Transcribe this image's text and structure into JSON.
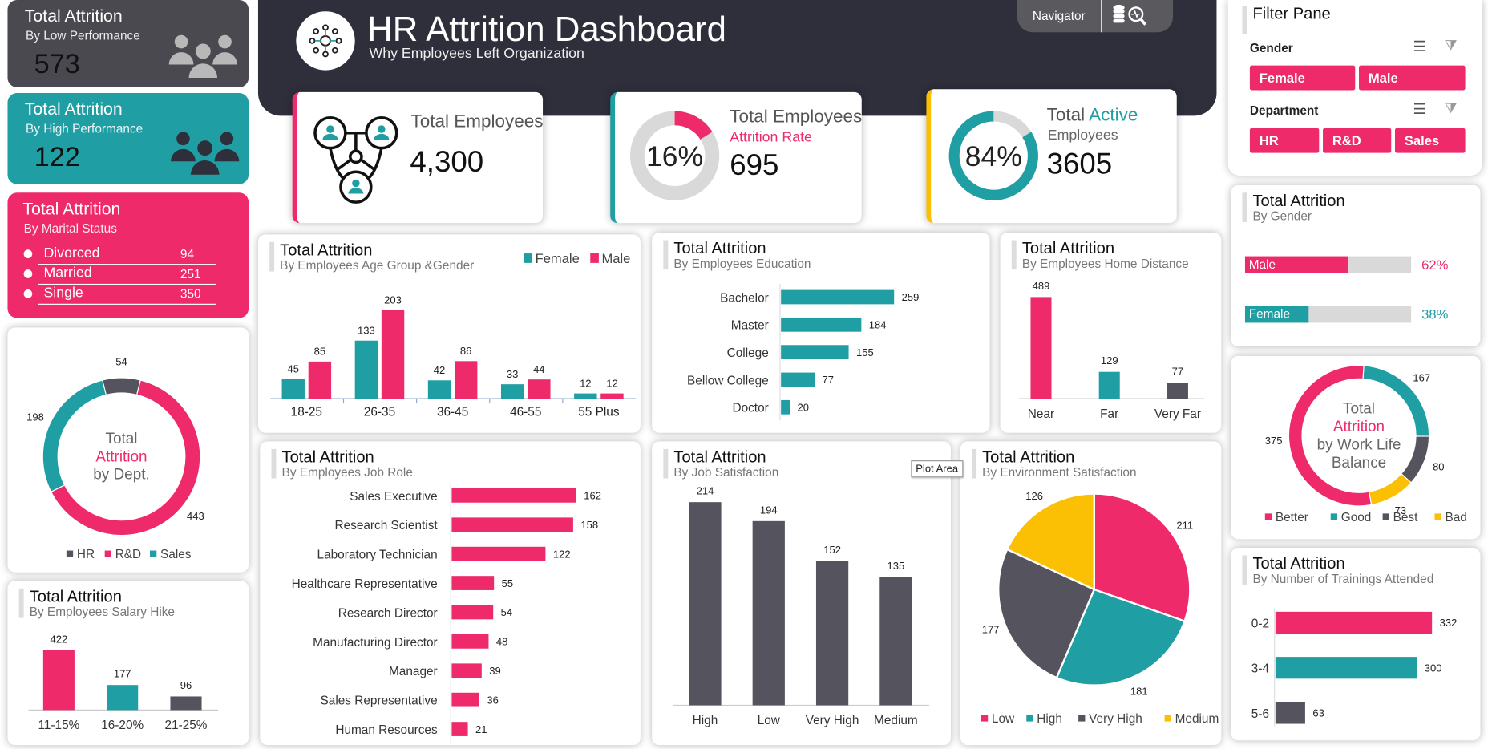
{
  "colors": {
    "pink": "#ee2a6a",
    "teal": "#1f9ea3",
    "dark": "#55545e",
    "yellow": "#fbbf04",
    "grey": "#d9d9d9",
    "header": "#2e2f3b"
  },
  "header": {
    "title": "HR Attrition Dashboard",
    "subtitle": "Why Employees Left Organization",
    "navigator_label": "Navigator",
    "logo_icon": "network-nodes-icon",
    "nav_icon": "database-search-icon"
  },
  "side": {
    "low": {
      "title": "Total Attrition",
      "subtitle": "By Low Performance",
      "value": "573",
      "icon": "people-group-icon"
    },
    "high": {
      "title": "Total Attrition",
      "subtitle": "By High Performance",
      "value": "122",
      "icon": "people-group-icon"
    },
    "marital": {
      "title": "Total Attrition",
      "subtitle": "By Marital Status",
      "rows": [
        {
          "label": "Divorced",
          "value": "94"
        },
        {
          "label": "Married",
          "value": "251"
        },
        {
          "label": "Single",
          "value": "350"
        }
      ]
    }
  },
  "kpi": {
    "total": {
      "label": "Total Employees",
      "value": "4,300",
      "icon": "employee-network-icon"
    },
    "rate": {
      "label": "Total Employees",
      "sublabel": "Attrition Rate",
      "percent_label": "16%",
      "percent": 16,
      "value": "695"
    },
    "active": {
      "label_a": "Total ",
      "label_b": "Active",
      "label_c": "Employees",
      "percent_label": "84%",
      "percent": 84,
      "value": "3605"
    }
  },
  "filter": {
    "title": "Filter Pane",
    "gender_label": "Gender",
    "gender_options": [
      "Female",
      "Male"
    ],
    "dept_label": "Department",
    "dept_options": [
      "HR",
      "R&D",
      "Sales"
    ],
    "multiselect_icon": "multi-select-icon",
    "clear_icon": "clear-filter-icon"
  },
  "gender_card": {
    "title": "Total Attrition",
    "subtitle": "By Gender",
    "rows": [
      {
        "label": "Male",
        "value": 62,
        "pct": "62%"
      },
      {
        "label": "Female",
        "value": 38,
        "pct": "38%"
      }
    ]
  },
  "tooltip": "Plot Area",
  "chart_data": [
    {
      "type": "bar",
      "title": "Total Attrition",
      "subtitle": "By Employees Age Group &Gender",
      "categories": [
        "18-25",
        "26-35",
        "36-45",
        "46-55",
        "55 Plus"
      ],
      "series": [
        {
          "name": "Female",
          "values": [
            45,
            133,
            42,
            33,
            12
          ]
        },
        {
          "name": "Male",
          "values": [
            85,
            203,
            86,
            44,
            12
          ]
        }
      ],
      "legend": "top-right"
    },
    {
      "type": "bar",
      "orientation": "horizontal",
      "title": "Total Attrition",
      "subtitle": "By Employees Education",
      "categories": [
        "Bachelor",
        "Master",
        "College",
        "Bellow College",
        "Doctor"
      ],
      "values": [
        259,
        184,
        155,
        77,
        20
      ]
    },
    {
      "type": "bar",
      "title": "Total Attrition",
      "subtitle": "By Employees Home Distance",
      "categories": [
        "Near",
        "Far",
        "Very Far"
      ],
      "values": [
        489,
        129,
        77
      ]
    },
    {
      "type": "bar",
      "orientation": "horizontal",
      "title": "Total Attrition",
      "subtitle": "By Employees Job Role",
      "categories": [
        "Sales Executive",
        "Research Scientist",
        "Laboratory Technician",
        "Healthcare Representative",
        "Research Director",
        "Manufacturing Director",
        "Manager",
        "Sales Representative",
        "Human Resources"
      ],
      "values": [
        162,
        158,
        122,
        55,
        54,
        48,
        39,
        36,
        21
      ]
    },
    {
      "type": "bar",
      "title": "Total Attrition",
      "subtitle": "By Job Satisfaction",
      "categories": [
        "High",
        "Low",
        "Very High",
        "Medium"
      ],
      "values": [
        214,
        194,
        152,
        135
      ]
    },
    {
      "type": "pie",
      "title": "Total Attrition",
      "subtitle": "By Environment Satisfaction",
      "categories": [
        "Low",
        "High",
        "Very High",
        "Medium"
      ],
      "values": [
        211,
        181,
        177,
        126
      ],
      "legend": "bottom"
    },
    {
      "type": "pie",
      "donut": true,
      "center_text": [
        "Total",
        "Attrition",
        "by Work Life",
        "Balance"
      ],
      "categories": [
        "Good",
        "Best",
        "Bad",
        "Better"
      ],
      "values": [
        167,
        80,
        73,
        375
      ],
      "legend_order": [
        "Better",
        "Good",
        "Best",
        "Bad"
      ],
      "legend": "bottom"
    },
    {
      "type": "pie",
      "donut": true,
      "center_text": [
        "Total",
        "Attrition",
        "by Dept."
      ],
      "categories": [
        "HR",
        "R&D",
        "Sales"
      ],
      "values": [
        54,
        443,
        198
      ],
      "legend": "bottom"
    },
    {
      "type": "bar",
      "title": "Total Attrition",
      "subtitle": "By Employees Salary Hike",
      "categories": [
        "11-15%",
        "16-20%",
        "21-25%"
      ],
      "values": [
        422,
        177,
        96
      ]
    },
    {
      "type": "bar",
      "orientation": "horizontal",
      "title": "Total Attrition",
      "subtitle": "By Number of Trainings Attended",
      "categories": [
        "0-2",
        "3-4",
        "5-6"
      ],
      "values": [
        332,
        300,
        63
      ]
    }
  ]
}
